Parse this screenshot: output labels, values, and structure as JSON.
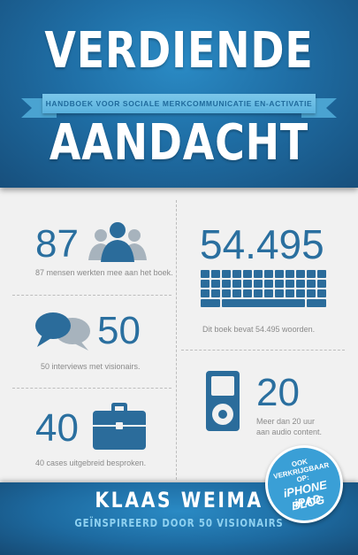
{
  "cover": {
    "title_line1": "VERDIENDE",
    "subtitle": "HANDBOEK VOOR SOCIALE MERKCOMMUNICATIE EN-ACTIVATIE",
    "title_line2": "AANDACHT"
  },
  "stats": {
    "contributors": {
      "number": "87",
      "caption": "87 mensen werkten mee aan het boek.",
      "icon": "people-icon"
    },
    "words": {
      "number": "54.495",
      "caption": "Dit boek bevat 54.495 woorden.",
      "icon": "keyboard-icon"
    },
    "interviews": {
      "number": "50",
      "caption": "50 interviews met visionairs.",
      "icon": "speech-bubbles-icon"
    },
    "audio": {
      "number": "20",
      "caption_line1": "Meer dan 20 uur",
      "caption_line2": "aan audio content.",
      "icon": "ipod-icon"
    },
    "cases": {
      "number": "40",
      "caption": "40 cases uitgebreid besproken.",
      "icon": "briefcase-icon"
    }
  },
  "footer": {
    "author": "KLAAS WEIMA",
    "tagline": "GEÏNSPIREERD DOOR 50 VISIONAIRS"
  },
  "badge": {
    "line1": "OOK",
    "line2": "VERKRIJGBAAR",
    "line3": "OP:",
    "line4": "iPHONE iPAD",
    "line5": "BLOG"
  },
  "colors": {
    "brand_blue": "#1f6ea5",
    "number_blue": "#2a6f9f",
    "ribbon_blue": "#7cc7ea",
    "icon_blue": "#2b6c9b",
    "icon_grey": "#a7b3bd",
    "background": "#f1f1f1"
  }
}
